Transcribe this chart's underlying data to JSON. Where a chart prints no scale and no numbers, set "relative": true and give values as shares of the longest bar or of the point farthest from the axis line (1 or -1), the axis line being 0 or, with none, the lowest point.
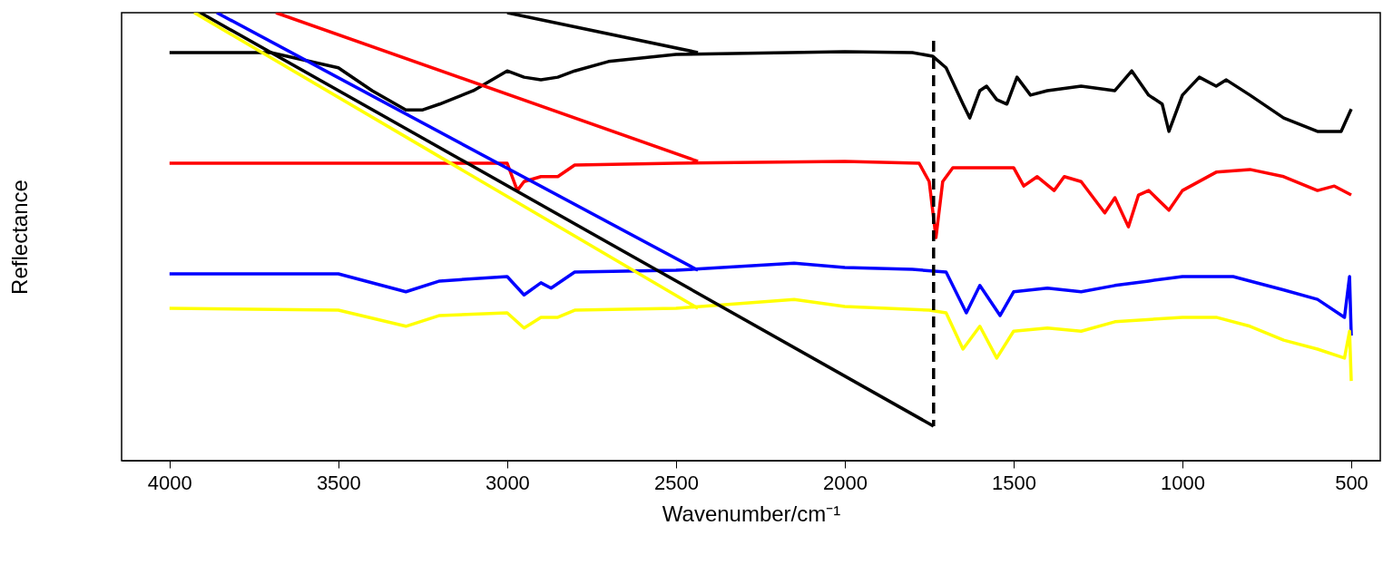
{
  "chart_data": {
    "type": "line",
    "relative": true,
    "xlabel": "Wavenumber/cm⁻¹",
    "ylabel": "Reflectance",
    "xlim": [
      4142,
      414
    ],
    "xticks": [
      4000,
      3500,
      3000,
      2500,
      2000,
      1500,
      1000,
      500
    ],
    "grid": false,
    "tick_labels": "x",
    "marker": "none",
    "line_style": "solid",
    "series": [
      {
        "color": "#000000",
        "x": [
          4000,
          3700,
          3500,
          3400,
          3300,
          3250,
          3200,
          3100,
          3000,
          2950,
          2900,
          2850,
          2800,
          2700,
          2500,
          2000,
          1800,
          1740,
          1700,
          1650,
          1630,
          1600,
          1580,
          1550,
          1520,
          1490,
          1450,
          1400,
          1300,
          1200,
          1150,
          1100,
          1060,
          1040,
          1000,
          950,
          900,
          870,
          800,
          700,
          600,
          530,
          500
        ],
        "values": [
          0.911,
          0.911,
          0.877,
          0.826,
          0.783,
          0.783,
          0.796,
          0.826,
          0.87,
          0.856,
          0.85,
          0.856,
          0.87,
          0.891,
          0.907,
          0.913,
          0.911,
          0.903,
          0.877,
          0.796,
          0.765,
          0.826,
          0.836,
          0.806,
          0.796,
          0.856,
          0.816,
          0.826,
          0.836,
          0.826,
          0.87,
          0.816,
          0.796,
          0.735,
          0.816,
          0.856,
          0.836,
          0.85,
          0.816,
          0.765,
          0.735,
          0.735,
          0.785
        ]
      },
      {
        "color": "#ff0000",
        "x": [
          4000,
          3000,
          2970,
          2950,
          2900,
          2850,
          2800,
          2500,
          2000,
          1780,
          1750,
          1730,
          1710,
          1680,
          1500,
          1470,
          1430,
          1380,
          1350,
          1300,
          1230,
          1200,
          1160,
          1130,
          1100,
          1040,
          1000,
          900,
          800,
          700,
          600,
          550,
          500
        ],
        "values": [
          0.664,
          0.664,
          0.603,
          0.623,
          0.634,
          0.634,
          0.66,
          0.664,
          0.668,
          0.664,
          0.623,
          0.498,
          0.623,
          0.654,
          0.654,
          0.613,
          0.634,
          0.603,
          0.634,
          0.623,
          0.553,
          0.587,
          0.522,
          0.593,
          0.603,
          0.559,
          0.603,
          0.644,
          0.65,
          0.634,
          0.603,
          0.613,
          0.593
        ]
      },
      {
        "color": "#0000ff",
        "x": [
          4000,
          3500,
          3300,
          3200,
          3000,
          2950,
          2900,
          2870,
          2800,
          2500,
          2150,
          2000,
          1800,
          1700,
          1640,
          1600,
          1540,
          1500,
          1400,
          1300,
          1200,
          1100,
          1000,
          850,
          700,
          600,
          520,
          505,
          500
        ],
        "values": [
          0.417,
          0.417,
          0.377,
          0.401,
          0.411,
          0.37,
          0.397,
          0.385,
          0.421,
          0.425,
          0.441,
          0.431,
          0.427,
          0.421,
          0.33,
          0.391,
          0.324,
          0.377,
          0.385,
          0.377,
          0.391,
          0.401,
          0.411,
          0.411,
          0.381,
          0.36,
          0.32,
          0.411,
          0.279
        ]
      },
      {
        "color": "#ffff00",
        "x": [
          4000,
          3500,
          3300,
          3200,
          3000,
          2950,
          2900,
          2850,
          2800,
          2500,
          2150,
          2000,
          1750,
          1700,
          1650,
          1600,
          1550,
          1500,
          1400,
          1300,
          1200,
          1000,
          900,
          800,
          700,
          600,
          520,
          505,
          500
        ],
        "values": [
          0.34,
          0.336,
          0.3,
          0.324,
          0.33,
          0.296,
          0.32,
          0.32,
          0.336,
          0.34,
          0.36,
          0.344,
          0.336,
          0.33,
          0.249,
          0.3,
          0.229,
          0.289,
          0.296,
          0.289,
          0.31,
          0.32,
          0.32,
          0.3,
          0.269,
          0.249,
          0.229,
          0.289,
          0.178
        ]
      },
      {
        "type": "line",
        "color": "#000000",
        "x": [
          3909,
          1737
        ],
        "values": [
          1,
          0.077
        ]
      },
      {
        "type": "line",
        "color": "#000000",
        "x": [
          3000,
          2435
        ],
        "values": [
          1,
          0.911
        ]
      },
      {
        "type": "line",
        "color": "#ff0000",
        "x": [
          3685,
          2435
        ],
        "values": [
          1,
          0.668
        ]
      },
      {
        "type": "line",
        "color": "#0000ff",
        "x": [
          3860,
          2435
        ],
        "values": [
          1,
          0.425
        ]
      },
      {
        "type": "line",
        "color": "#ffff00",
        "x": [
          3927,
          2435
        ],
        "values": [
          1,
          0.34
        ]
      },
      {
        "type": "line",
        "color": "#000000",
        "line_style": "dashed",
        "x": [
          1737,
          1737
        ],
        "values": [
          0.937,
          0.077
        ]
      }
    ]
  }
}
